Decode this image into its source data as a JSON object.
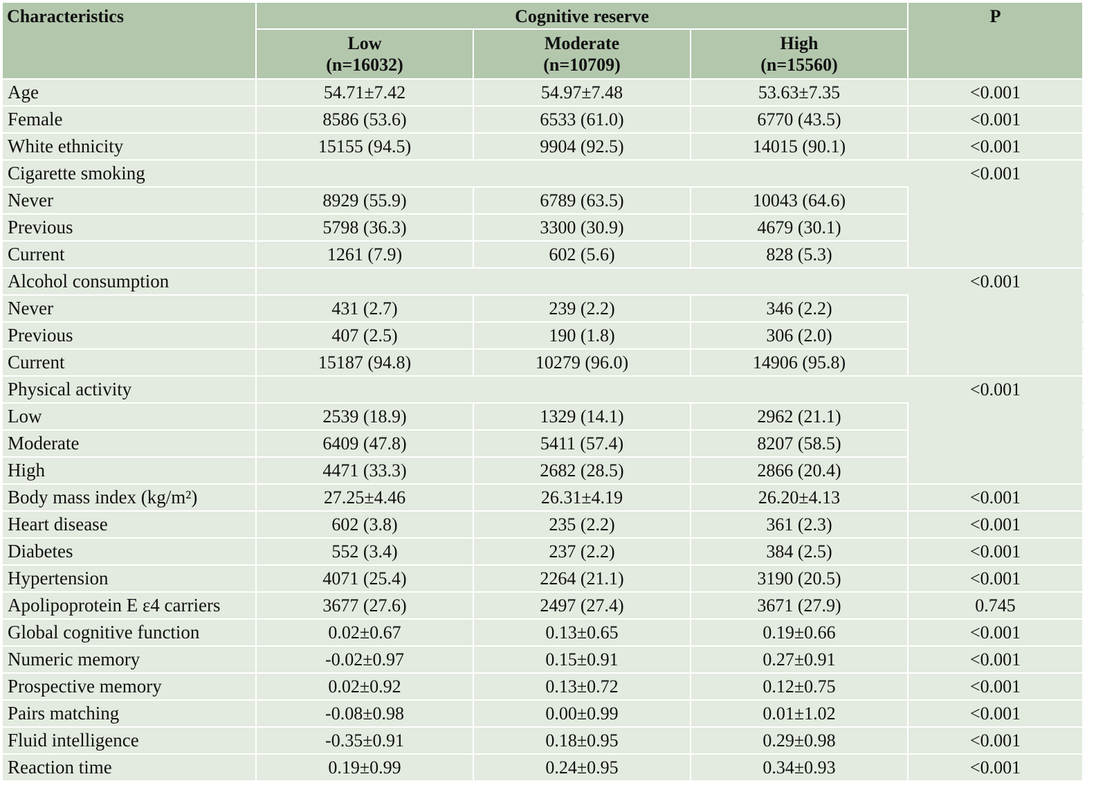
{
  "table": {
    "header": {
      "characteristics": "Characteristics",
      "cognitive_reserve": "Cognitive reserve",
      "p": "P",
      "groups": [
        {
          "name": "Low",
          "n": "(n=16032)"
        },
        {
          "name": "Moderate",
          "n": "(n=10709)"
        },
        {
          "name": "High",
          "n": "(n=15560)"
        }
      ]
    },
    "rows": [
      {
        "label": "Age",
        "low": "54.71±7.42",
        "moderate": "54.97±7.48",
        "high": "53.63±7.35",
        "p": "<0.001"
      },
      {
        "label": "Female",
        "low": "8586 (53.6)",
        "moderate": "6533 (61.0)",
        "high": "6770 (43.5)",
        "p": "<0.001"
      },
      {
        "label": "White ethnicity",
        "low": "15155 (94.5)",
        "moderate": "9904 (92.5)",
        "high": "14015 (90.1)",
        "p": "<0.001"
      },
      {
        "label": "Cigarette smoking",
        "low": "",
        "moderate": "",
        "high": "",
        "p": "<0.001"
      },
      {
        "label": "Never",
        "low": "8929 (55.9)",
        "moderate": "6789 (63.5)",
        "high": "10043 (64.6)",
        "p": ""
      },
      {
        "label": "Previous",
        "low": "5798 (36.3)",
        "moderate": "3300 (30.9)",
        "high": "4679 (30.1)",
        "p": ""
      },
      {
        "label": "Current",
        "low": "1261 (7.9)",
        "moderate": "602 (5.6)",
        "high": "828 (5.3)",
        "p": ""
      },
      {
        "label": "Alcohol consumption",
        "low": "",
        "moderate": "",
        "high": "",
        "p": "<0.001"
      },
      {
        "label": "Never",
        "low": "431 (2.7)",
        "moderate": "239 (2.2)",
        "high": "346 (2.2)",
        "p": ""
      },
      {
        "label": "Previous",
        "low": "407 (2.5)",
        "moderate": "190 (1.8)",
        "high": "306 (2.0)",
        "p": ""
      },
      {
        "label": "Current",
        "low": "15187 (94.8)",
        "moderate": "10279 (96.0)",
        "high": "14906 (95.8)",
        "p": ""
      },
      {
        "label": "Physical activity",
        "low": "",
        "moderate": "",
        "high": "",
        "p": "<0.001"
      },
      {
        "label": "Low",
        "low": "2539 (18.9)",
        "moderate": "1329 (14.1)",
        "high": "2962 (21.1)",
        "p": ""
      },
      {
        "label": "Moderate",
        "low": "6409 (47.8)",
        "moderate": "5411 (57.4)",
        "high": "8207 (58.5)",
        "p": ""
      },
      {
        "label": "High",
        "low": "4471 (33.3)",
        "moderate": "2682 (28.5)",
        "high": "2866 (20.4)",
        "p": ""
      },
      {
        "label": "Body mass index (kg/m²)",
        "low": "27.25±4.46",
        "moderate": "26.31±4.19",
        "high": "26.20±4.13",
        "p": "<0.001"
      },
      {
        "label": "Heart disease",
        "low": "602 (3.8)",
        "moderate": "235 (2.2)",
        "high": "361 (2.3)",
        "p": "<0.001"
      },
      {
        "label": "Diabetes",
        "low": "552 (3.4)",
        "moderate": "237 (2.2)",
        "high": "384 (2.5)",
        "p": "<0.001"
      },
      {
        "label": "Hypertension",
        "low": "4071 (25.4)",
        "moderate": "2264 (21.1)",
        "high": "3190 (20.5)",
        "p": "<0.001"
      },
      {
        "label": "Apolipoprotein E ε4 carriers",
        "low": "3677 (27.6)",
        "moderate": "2497 (27.4)",
        "high": "3671 (27.9)",
        "p": "0.745"
      },
      {
        "label": "Global cognitive function",
        "low": "0.02±0.67",
        "moderate": "0.13±0.65",
        "high": "0.19±0.66",
        "p": "<0.001"
      },
      {
        "label": "Numeric memory",
        "low": "-0.02±0.97",
        "moderate": "0.15±0.91",
        "high": "0.27±0.91",
        "p": "<0.001"
      },
      {
        "label": "Prospective memory",
        "low": "0.02±0.92",
        "moderate": "0.13±0.72",
        "high": "0.12±0.75",
        "p": "<0.001"
      },
      {
        "label": "Pairs matching",
        "low": "-0.08±0.98",
        "moderate": "0.00±0.99",
        "high": "0.01±1.02",
        "p": "<0.001"
      },
      {
        "label": "Fluid intelligence",
        "low": "-0.35±0.91",
        "moderate": "0.18±0.95",
        "high": "0.29±0.98",
        "p": "<0.001"
      },
      {
        "label": "Reaction time",
        "low": "0.19±0.99",
        "moderate": "0.24±0.95",
        "high": "0.34±0.93",
        "p": "<0.001"
      }
    ]
  }
}
